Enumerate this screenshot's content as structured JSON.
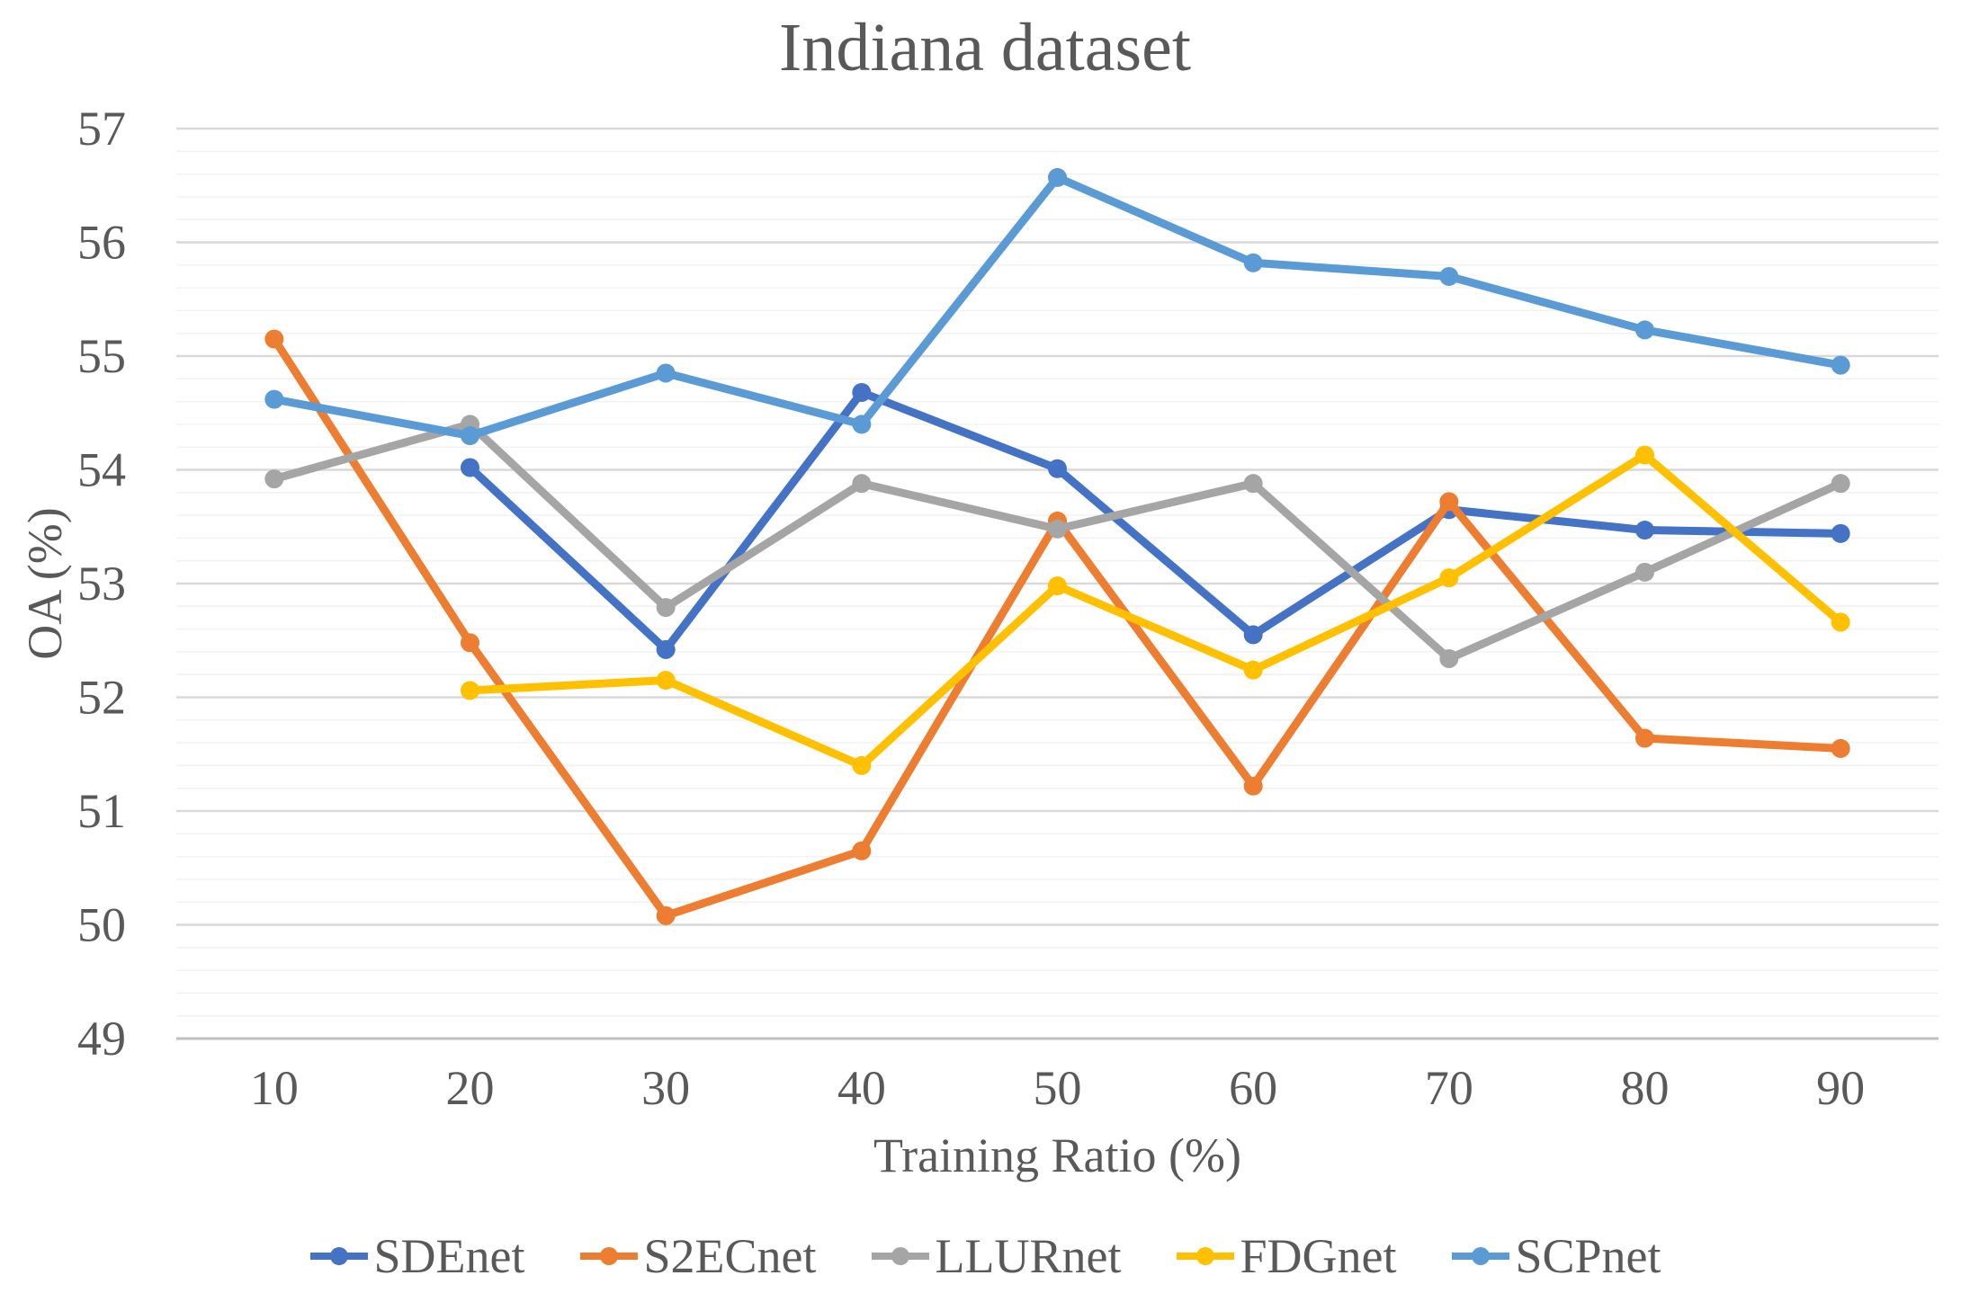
{
  "chart_data": {
    "type": "line",
    "title": "Indiana dataset",
    "xlabel": "Training Ratio (%)",
    "ylabel": "OA (%)",
    "x": [
      10,
      20,
      30,
      40,
      50,
      60,
      70,
      80,
      90
    ],
    "xticks": [
      "10",
      "20",
      "30",
      "40",
      "50",
      "60",
      "70",
      "80",
      "90"
    ],
    "yticks": [
      "57",
      "56",
      "55",
      "54",
      "53",
      "52",
      "51",
      "50",
      "49"
    ],
    "ylim": [
      49,
      57
    ],
    "y_major_step": 1,
    "y_minor_step": 0.2,
    "grid": "horizontal, major and faint minor lines",
    "legend_position": "bottom",
    "marker": "circle",
    "series": [
      {
        "name": "SDEnet",
        "color": "#4472C4",
        "values": [
          null,
          54.02,
          52.42,
          54.68,
          54.01,
          52.55,
          53.65,
          53.47,
          53.44
        ]
      },
      {
        "name": "S2ECnet",
        "color": "#ED7D31",
        "values": [
          55.15,
          52.48,
          50.08,
          50.65,
          53.55,
          51.22,
          53.72,
          51.64,
          51.55
        ]
      },
      {
        "name": "LLURnet",
        "color": "#A5A5A5",
        "values": [
          53.92,
          54.4,
          52.79,
          53.88,
          53.48,
          53.88,
          52.34,
          53.1,
          53.88
        ]
      },
      {
        "name": "FDGnet",
        "color": "#FFC000",
        "values": [
          null,
          52.06,
          52.15,
          51.4,
          52.98,
          52.24,
          53.05,
          54.13,
          52.66
        ]
      },
      {
        "name": "SCPnet",
        "color": "#5B9BD5",
        "values": [
          54.62,
          54.3,
          54.85,
          54.4,
          56.57,
          55.82,
          55.7,
          55.23,
          54.92
        ]
      }
    ],
    "colors": {
      "text": "#595959",
      "major_grid": "#D9D9D9",
      "minor_grid": "#F2F2F2",
      "axis_line": "#BFBFBF",
      "background": "#FFFFFF"
    }
  }
}
